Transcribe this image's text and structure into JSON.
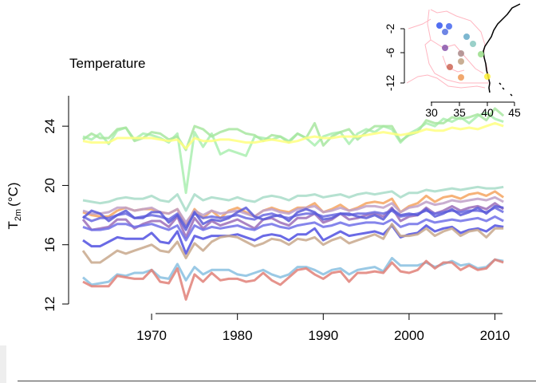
{
  "chart_data": {
    "type": "line",
    "title": "Temperature",
    "ylabel_main": "T",
    "ylabel_sub": "2m",
    "ylabel_unit": "(°C)",
    "xlim": [
      1962,
      2012
    ],
    "ylim": [
      12,
      26
    ],
    "xticks": [
      "1970",
      "1980",
      "1990",
      "2000",
      "2010"
    ],
    "xtick_values": [
      1970,
      1980,
      1990,
      2000,
      2010
    ],
    "yticks": [
      "12",
      "16",
      "20",
      "24"
    ],
    "ytick_values": [
      12,
      16,
      20,
      24
    ],
    "x_start": 1962,
    "series": [
      {
        "color": "#aaeeb0",
        "values": [
          23.3,
          23.1,
          23.5,
          22.8,
          23.7,
          23.9,
          23.1,
          23.5,
          23.4,
          23.2,
          22.9,
          23.5,
          19.5,
          23.6,
          22.6,
          23.5,
          22.1,
          22.4,
          22.2,
          22.0,
          23.3,
          23.2,
          23.1,
          23.3,
          23.0,
          23.5,
          23.2,
          22.7,
          23.3,
          23.5,
          23.6,
          22.8,
          23.5,
          23.8,
          23.6,
          24.0,
          23.8,
          22.9,
          23.5,
          23.8,
          24.2,
          24.0,
          24.5,
          24.3,
          24.6,
          24.2,
          24.7,
          24.9,
          24.5,
          24.3
        ]
      },
      {
        "color": "#a8e6a0",
        "values": [
          23.1,
          23.5,
          23.2,
          23.2,
          23.8,
          23.9,
          23.0,
          23.2,
          23.6,
          23.5,
          23.1,
          23.3,
          22.4,
          24.0,
          23.8,
          23.3,
          23.6,
          23.8,
          23.8,
          23.5,
          23.4,
          23.0,
          23.4,
          23.3,
          22.9,
          23.5,
          23.2,
          24.2,
          22.7,
          23.3,
          23.6,
          23.8,
          23.1,
          23.6,
          24.0,
          24.0,
          24.0,
          23.0,
          23.4,
          23.6,
          24.4,
          24.2,
          24.2,
          24.6,
          24.5,
          24.6,
          24.8,
          24.4,
          25.2,
          24.7
        ]
      },
      {
        "color": "#ffff80",
        "values": [
          23.0,
          22.9,
          22.9,
          22.9,
          23.2,
          23.2,
          23.2,
          23.2,
          23.2,
          23.1,
          23.0,
          23.1,
          22.5,
          23.2,
          23.0,
          23.0,
          23.1,
          23.1,
          23.0,
          22.9,
          22.9,
          23.0,
          23.1,
          23.0,
          22.9,
          23.0,
          23.2,
          23.3,
          23.2,
          23.2,
          23.3,
          23.3,
          23.3,
          23.4,
          23.5,
          23.6,
          23.5,
          23.4,
          23.5,
          23.6,
          23.8,
          23.7,
          23.7,
          23.9,
          23.8,
          23.9,
          23.8,
          24.0,
          24.2,
          24.0
        ]
      },
      {
        "color": "#a8dcc8",
        "values": [
          19.0,
          18.9,
          18.8,
          18.9,
          19.1,
          19.2,
          19.1,
          19.1,
          19.3,
          19.0,
          18.9,
          19.4,
          18.3,
          19.4,
          19.0,
          19.2,
          19.1,
          19.0,
          19.2,
          19.0,
          18.9,
          19.2,
          19.3,
          19.2,
          19.0,
          19.3,
          19.3,
          19.4,
          19.2,
          19.3,
          19.4,
          19.2,
          19.4,
          19.5,
          19.4,
          19.5,
          19.6,
          19.2,
          19.5,
          19.5,
          19.7,
          19.6,
          19.7,
          19.8,
          19.7,
          19.8,
          19.9,
          19.8,
          19.8,
          19.9
        ]
      },
      {
        "color": "#f4a460",
        "values": [
          18.2,
          18.0,
          17.9,
          17.9,
          18.3,
          18.5,
          18.3,
          18.4,
          18.4,
          18.2,
          18.1,
          18.4,
          17.3,
          18.4,
          17.8,
          18.3,
          17.8,
          18.3,
          18.5,
          18.2,
          17.9,
          18.3,
          18.5,
          18.3,
          18.2,
          18.5,
          18.5,
          18.8,
          18.2,
          18.4,
          18.7,
          18.3,
          18.5,
          18.8,
          18.9,
          18.8,
          19.1,
          18.2,
          18.6,
          18.8,
          19.3,
          18.9,
          19.2,
          19.3,
          19.1,
          19.4,
          19.5,
          19.3,
          19.6,
          19.2
        ]
      },
      {
        "color": "#c0a0c8",
        "values": [
          18.3,
          18.1,
          18.1,
          18.2,
          18.5,
          18.5,
          18.3,
          18.4,
          18.5,
          18.2,
          18.1,
          18.4,
          17.5,
          18.3,
          18.0,
          18.3,
          18.1,
          18.2,
          18.3,
          18.1,
          17.9,
          18.3,
          18.4,
          18.2,
          18.1,
          18.4,
          18.5,
          18.6,
          18.2,
          18.3,
          18.5,
          18.3,
          18.4,
          18.6,
          18.6,
          18.5,
          18.8,
          18.2,
          18.5,
          18.6,
          18.9,
          18.7,
          18.8,
          19.0,
          18.9,
          19.0,
          19.1,
          19.0,
          19.2,
          18.9
        ]
      },
      {
        "color": "#9b6db8",
        "values": [
          17.7,
          17.0,
          17.1,
          17.2,
          17.7,
          17.7,
          17.1,
          17.4,
          17.6,
          17.6,
          17.2,
          17.9,
          16.5,
          17.8,
          17.1,
          17.6,
          17.3,
          17.5,
          17.7,
          17.4,
          17.1,
          17.7,
          17.8,
          17.5,
          17.3,
          17.8,
          17.8,
          18.1,
          17.5,
          17.7,
          18.1,
          17.7,
          17.8,
          18.0,
          18.1,
          17.9,
          18.5,
          17.6,
          17.9,
          18.0,
          18.5,
          18.1,
          18.3,
          18.6,
          18.3,
          18.5,
          18.6,
          18.4,
          18.8,
          18.4
        ]
      },
      {
        "color": "#6a6ae0",
        "values": [
          17.9,
          17.6,
          17.8,
          17.8,
          18.0,
          18.1,
          17.8,
          17.9,
          18.0,
          17.9,
          17.7,
          18.1,
          17.2,
          18.1,
          17.8,
          17.9,
          17.8,
          17.9,
          18.0,
          17.8,
          17.7,
          18.0,
          18.1,
          17.9,
          17.8,
          18.0,
          18.1,
          18.1,
          17.9,
          18.0,
          18.1,
          18.0,
          18.1,
          18.1,
          18.2,
          18.1,
          18.3,
          17.9,
          18.0,
          18.1,
          18.3,
          18.1,
          18.2,
          18.3,
          18.2,
          18.3,
          18.3,
          18.2,
          18.5,
          18.2
        ]
      },
      {
        "color": "#5a5ad8",
        "values": [
          17.8,
          18.3,
          18.1,
          17.6,
          18.0,
          18.3,
          17.8,
          17.8,
          18.2,
          18.2,
          17.5,
          18.0,
          17.0,
          18.2,
          17.4,
          17.7,
          17.6,
          17.8,
          18.2,
          18.5,
          17.9,
          17.7,
          17.9,
          18.0,
          17.6,
          18.2,
          18.4,
          18.2,
          17.7,
          17.8,
          18.1,
          18.1,
          17.9,
          17.8,
          18.0,
          17.7,
          18.4,
          18.0,
          18.1,
          18.0,
          18.4,
          17.9,
          18.1,
          18.4,
          18.0,
          18.2,
          18.5,
          18.1,
          18.6,
          18.5
        ]
      },
      {
        "color": "#7070e8",
        "values": [
          17.2,
          17.0,
          17.0,
          17.1,
          17.4,
          17.4,
          17.2,
          17.3,
          17.4,
          17.2,
          17.0,
          17.3,
          16.3,
          17.3,
          17.0,
          17.2,
          17.1,
          17.2,
          17.3,
          17.1,
          17.0,
          17.3,
          17.4,
          17.2,
          17.1,
          17.3,
          17.4,
          17.5,
          17.2,
          17.3,
          17.5,
          17.3,
          17.4,
          17.5,
          17.5,
          17.4,
          17.7,
          17.2,
          17.4,
          17.4,
          17.7,
          17.5,
          17.6,
          17.7,
          17.6,
          17.7,
          17.8,
          17.6,
          17.9,
          17.6
        ]
      },
      {
        "color": "#5050e0",
        "values": [
          16.3,
          15.9,
          15.9,
          16.2,
          16.5,
          16.4,
          16.4,
          16.4,
          16.8,
          16.2,
          16.1,
          16.9,
          15.4,
          16.6,
          16.4,
          16.6,
          16.6,
          16.6,
          16.7,
          16.5,
          16.3,
          16.6,
          16.7,
          16.6,
          16.3,
          16.7,
          16.7,
          17.1,
          16.3,
          16.6,
          16.9,
          16.6,
          16.7,
          16.8,
          16.9,
          16.7,
          17.3,
          16.5,
          16.7,
          16.8,
          17.3,
          16.9,
          17.1,
          17.2,
          16.8,
          17.0,
          17.1,
          16.9,
          17.3,
          17.2
        ]
      },
      {
        "color": "#c8a88c",
        "values": [
          15.6,
          14.8,
          14.8,
          15.2,
          15.6,
          15.4,
          15.6,
          15.8,
          16.0,
          15.6,
          15.5,
          16.2,
          15.1,
          16.1,
          15.6,
          16.2,
          16.5,
          16.6,
          16.5,
          16.2,
          15.9,
          16.1,
          16.4,
          16.3,
          16.0,
          16.4,
          16.3,
          16.5,
          16.0,
          16.3,
          16.5,
          16.1,
          16.3,
          16.5,
          16.7,
          16.4,
          17.4,
          16.6,
          16.6,
          16.7,
          17.1,
          16.6,
          16.9,
          17.1,
          16.6,
          16.9,
          17.0,
          16.5,
          17.1,
          17.1
        ]
      },
      {
        "color": "#88c0e0",
        "values": [
          13.8,
          13.3,
          13.4,
          13.5,
          14.0,
          13.9,
          14.1,
          14.1,
          14.3,
          13.8,
          13.7,
          14.7,
          13.6,
          14.5,
          14.0,
          14.3,
          14.3,
          14.3,
          14.0,
          13.9,
          14.1,
          14.3,
          14.0,
          13.8,
          14.0,
          14.5,
          14.5,
          14.3,
          14.0,
          14.3,
          14.4,
          14.0,
          14.3,
          14.4,
          14.5,
          14.2,
          15.1,
          14.6,
          14.6,
          14.6,
          14.8,
          14.5,
          14.7,
          14.9,
          14.6,
          14.7,
          14.4,
          14.5,
          15.0,
          14.9
        ]
      },
      {
        "color": "#e08078",
        "values": [
          13.5,
          13.2,
          13.2,
          13.2,
          13.9,
          13.8,
          13.7,
          13.7,
          14.3,
          13.5,
          13.4,
          14.4,
          12.3,
          14.0,
          13.5,
          14.1,
          13.6,
          13.7,
          13.7,
          13.5,
          13.6,
          14.1,
          13.6,
          13.3,
          13.8,
          14.3,
          14.4,
          14.0,
          13.7,
          14.1,
          14.2,
          13.5,
          14.1,
          14.1,
          14.2,
          14.1,
          14.8,
          14.2,
          14.1,
          14.3,
          14.9,
          14.4,
          14.8,
          14.8,
          14.3,
          14.6,
          14.3,
          14.4,
          15.0,
          14.8
        ]
      }
    ]
  },
  "inset_map": {
    "xticks": [
      "30",
      "35",
      "40",
      "45"
    ],
    "yticks": [
      "-2",
      "-6",
      "-12"
    ],
    "stations": [
      {
        "color": "#3355ee"
      },
      {
        "color": "#4466ee"
      },
      {
        "color": "#5570e0"
      },
      {
        "color": "#66aac8"
      },
      {
        "color": "#88c8c0"
      },
      {
        "color": "#8855aa"
      },
      {
        "color": "#aa8888"
      },
      {
        "color": "#c0a080"
      },
      {
        "color": "#99dd88"
      },
      {
        "color": "#cc6655"
      },
      {
        "color": "#ee9955"
      },
      {
        "color": "#ffee33"
      }
    ]
  }
}
